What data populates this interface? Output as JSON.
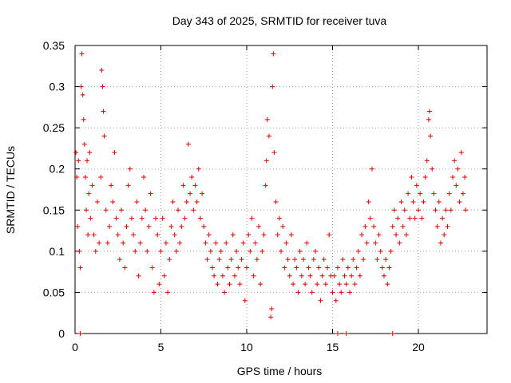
{
  "chart_data": {
    "type": "scatter",
    "title": "Day 343 of 2025, SRMTID for receiver tuva",
    "xlabel": "GPS time / hours",
    "ylabel": "SRMTID / TECUs",
    "xlim": [
      0,
      24
    ],
    "ylim": [
      0,
      0.35
    ],
    "xticks": [
      0,
      5,
      10,
      15,
      20
    ],
    "xtick_labels": [
      "0",
      "5",
      "10",
      "15",
      "20"
    ],
    "yticks": [
      0,
      0.05,
      0.1,
      0.15,
      0.2,
      0.25,
      0.3,
      0.35
    ],
    "ytick_labels": [
      "0",
      "0.05",
      "0.1",
      "0.15",
      "0.2",
      "0.25",
      "0.3",
      "0.35"
    ],
    "grid": true,
    "marker": "plus",
    "color": "#e00000",
    "series": [
      {
        "name": "SRMTID",
        "points": [
          [
            0.05,
            0.22
          ],
          [
            0.1,
            0.19
          ],
          [
            0.15,
            0.13
          ],
          [
            0.2,
            0.21
          ],
          [
            0.25,
            0.1
          ],
          [
            0.3,
            0.08
          ],
          [
            0.35,
            0.3
          ],
          [
            0.4,
            0.34
          ],
          [
            0.45,
            0.29
          ],
          [
            0.5,
            0.26
          ],
          [
            0.55,
            0.23
          ],
          [
            0.6,
            0.19
          ],
          [
            0.65,
            0.15
          ],
          [
            0.7,
            0.21
          ],
          [
            0.75,
            0.12
          ],
          [
            0.8,
            0.17
          ],
          [
            0.85,
            0.22
          ],
          [
            0.9,
            0.14
          ],
          [
            1.0,
            0.18
          ],
          [
            1.1,
            0.12
          ],
          [
            1.2,
            0.1
          ],
          [
            1.3,
            0.16
          ],
          [
            1.4,
            0.11
          ],
          [
            1.5,
            0.19
          ],
          [
            1.55,
            0.32
          ],
          [
            1.6,
            0.3
          ],
          [
            1.65,
            0.27
          ],
          [
            1.7,
            0.24
          ],
          [
            1.8,
            0.15
          ],
          [
            1.9,
            0.11
          ],
          [
            2.0,
            0.13
          ],
          [
            2.1,
            0.18
          ],
          [
            2.2,
            0.16
          ],
          [
            2.3,
            0.22
          ],
          [
            2.4,
            0.14
          ],
          [
            2.5,
            0.12
          ],
          [
            2.6,
            0.09
          ],
          [
            2.7,
            0.15
          ],
          [
            2.8,
            0.11
          ],
          [
            2.9,
            0.08
          ],
          [
            3.0,
            0.13
          ],
          [
            3.1,
            0.18
          ],
          [
            3.2,
            0.2
          ],
          [
            3.3,
            0.14
          ],
          [
            3.4,
            0.12
          ],
          [
            3.5,
            0.1
          ],
          [
            3.6,
            0.16
          ],
          [
            3.7,
            0.07
          ],
          [
            3.8,
            0.11
          ],
          [
            3.9,
            0.14
          ],
          [
            4.0,
            0.19
          ],
          [
            4.1,
            0.15
          ],
          [
            4.2,
            0.1
          ],
          [
            4.3,
            0.13
          ],
          [
            4.4,
            0.17
          ],
          [
            4.5,
            0.08
          ],
          [
            4.6,
            0.05
          ],
          [
            4.7,
            0.14
          ],
          [
            4.8,
            0.12
          ],
          [
            4.9,
            0.06
          ],
          [
            5.0,
            0.1
          ],
          [
            5.1,
            0.14
          ],
          [
            5.2,
            0.07
          ],
          [
            5.3,
            0.11
          ],
          [
            5.4,
            0.05
          ],
          [
            5.5,
            0.09
          ],
          [
            5.6,
            0.13
          ],
          [
            5.7,
            0.16
          ],
          [
            5.8,
            0.12
          ],
          [
            5.9,
            0.1
          ],
          [
            6.0,
            0.15
          ],
          [
            6.1,
            0.11
          ],
          [
            6.2,
            0.13
          ],
          [
            6.3,
            0.18
          ],
          [
            6.4,
            0.14
          ],
          [
            6.5,
            0.16
          ],
          [
            6.6,
            0.23
          ],
          [
            6.7,
            0.17
          ],
          [
            6.8,
            0.19
          ],
          [
            6.9,
            0.15
          ],
          [
            7.0,
            0.18
          ],
          [
            7.1,
            0.16
          ],
          [
            7.2,
            0.2
          ],
          [
            7.3,
            0.14
          ],
          [
            7.4,
            0.17
          ],
          [
            7.5,
            0.13
          ],
          [
            7.6,
            0.11
          ],
          [
            7.7,
            0.09
          ],
          [
            7.8,
            0.12
          ],
          [
            7.9,
            0.1
          ],
          [
            8.0,
            0.08
          ],
          [
            8.1,
            0.07
          ],
          [
            8.2,
            0.11
          ],
          [
            8.3,
            0.06
          ],
          [
            8.4,
            0.09
          ],
          [
            8.5,
            0.1
          ],
          [
            8.6,
            0.07
          ],
          [
            8.7,
            0.05
          ],
          [
            8.8,
            0.11
          ],
          [
            8.9,
            0.08
          ],
          [
            9.0,
            0.06
          ],
          [
            9.1,
            0.09
          ],
          [
            9.2,
            0.12
          ],
          [
            9.3,
            0.07
          ],
          [
            9.4,
            0.1
          ],
          [
            9.5,
            0.08
          ],
          [
            9.6,
            0.06
          ],
          [
            9.7,
            0.09
          ],
          [
            9.8,
            0.11
          ],
          [
            9.9,
            0.04
          ],
          [
            10.0,
            0.08
          ],
          [
            10.1,
            0.12
          ],
          [
            10.2,
            0.1
          ],
          [
            10.3,
            0.14
          ],
          [
            10.4,
            0.07
          ],
          [
            10.5,
            0.11
          ],
          [
            10.6,
            0.09
          ],
          [
            10.7,
            0.13
          ],
          [
            10.8,
            0.06
          ],
          [
            10.9,
            0.1
          ],
          [
            11.0,
            0.12
          ],
          [
            11.1,
            0.18
          ],
          [
            11.15,
            0.21
          ],
          [
            11.2,
            0.26
          ],
          [
            11.3,
            0.24
          ],
          [
            11.4,
            0.02
          ],
          [
            11.45,
            0.03
          ],
          [
            11.5,
            0.3
          ],
          [
            11.55,
            0.34
          ],
          [
            11.6,
            0.22
          ],
          [
            11.7,
            0.16
          ],
          [
            11.8,
            0.12
          ],
          [
            11.9,
            0.14
          ],
          [
            12.0,
            0.1
          ],
          [
            12.1,
            0.13
          ],
          [
            12.2,
            0.08
          ],
          [
            12.3,
            0.11
          ],
          [
            12.4,
            0.09
          ],
          [
            12.5,
            0.07
          ],
          [
            12.6,
            0.12
          ],
          [
            12.7,
            0.06
          ],
          [
            12.8,
            0.09
          ],
          [
            12.9,
            0.08
          ],
          [
            13.0,
            0.05
          ],
          [
            13.1,
            0.1
          ],
          [
            13.2,
            0.07
          ],
          [
            13.3,
            0.09
          ],
          [
            13.4,
            0.06
          ],
          [
            13.5,
            0.11
          ],
          [
            13.6,
            0.08
          ],
          [
            13.7,
            0.07
          ],
          [
            13.8,
            0.05
          ],
          [
            13.9,
            0.09
          ],
          [
            14.0,
            0.1
          ],
          [
            14.1,
            0.06
          ],
          [
            14.2,
            0.08
          ],
          [
            14.3,
            0.04
          ],
          [
            14.4,
            0.07
          ],
          [
            14.5,
            0.09
          ],
          [
            14.6,
            0.06
          ],
          [
            14.7,
            0.08
          ],
          [
            14.8,
            0.12
          ],
          [
            14.9,
            0.07
          ],
          [
            15.0,
            0.05
          ],
          [
            15.1,
            0.07
          ],
          [
            15.2,
            0.04
          ],
          [
            15.3,
            0.08
          ],
          [
            15.4,
            0.06
          ],
          [
            15.5,
            0.05
          ],
          [
            15.6,
            0.09
          ],
          [
            15.7,
            0.07
          ],
          [
            15.8,
            0.06
          ],
          [
            15.9,
            0.08
          ],
          [
            16.0,
            0.05
          ],
          [
            16.1,
            0.07
          ],
          [
            16.2,
            0.09
          ],
          [
            16.3,
            0.06
          ],
          [
            16.4,
            0.08
          ],
          [
            16.5,
            0.1
          ],
          [
            16.6,
            0.07
          ],
          [
            16.7,
            0.12
          ],
          [
            16.8,
            0.09
          ],
          [
            16.9,
            0.13
          ],
          [
            17.0,
            0.11
          ],
          [
            17.1,
            0.16
          ],
          [
            17.2,
            0.14
          ],
          [
            17.3,
            0.2
          ],
          [
            17.4,
            0.13
          ],
          [
            17.5,
            0.11
          ],
          [
            17.6,
            0.09
          ],
          [
            17.7,
            0.12
          ],
          [
            17.8,
            0.1
          ],
          [
            17.9,
            0.08
          ],
          [
            18.0,
            0.07
          ],
          [
            18.1,
            0.09
          ],
          [
            18.2,
            0.06
          ],
          [
            18.3,
            0.08
          ],
          [
            18.4,
            0.1
          ],
          [
            18.5,
            0.13
          ],
          [
            18.6,
            0.15
          ],
          [
            18.7,
            0.12
          ],
          [
            18.8,
            0.14
          ],
          [
            18.9,
            0.11
          ],
          [
            19.0,
            0.16
          ],
          [
            19.1,
            0.13
          ],
          [
            19.2,
            0.15
          ],
          [
            19.3,
            0.12
          ],
          [
            19.4,
            0.17
          ],
          [
            19.5,
            0.14
          ],
          [
            19.6,
            0.19
          ],
          [
            19.7,
            0.16
          ],
          [
            19.8,
            0.14
          ],
          [
            19.9,
            0.18
          ],
          [
            20.0,
            0.15
          ],
          [
            20.1,
            0.17
          ],
          [
            20.2,
            0.14
          ],
          [
            20.3,
            0.16
          ],
          [
            20.4,
            0.19
          ],
          [
            20.5,
            0.21
          ],
          [
            20.6,
            0.26
          ],
          [
            20.65,
            0.27
          ],
          [
            20.7,
            0.24
          ],
          [
            20.8,
            0.2
          ],
          [
            20.9,
            0.17
          ],
          [
            21.0,
            0.15
          ],
          [
            21.1,
            0.13
          ],
          [
            21.2,
            0.16
          ],
          [
            21.3,
            0.11
          ],
          [
            21.4,
            0.14
          ],
          [
            21.5,
            0.12
          ],
          [
            21.6,
            0.15
          ],
          [
            21.7,
            0.13
          ],
          [
            21.8,
            0.17
          ],
          [
            21.9,
            0.15
          ],
          [
            22.0,
            0.19
          ],
          [
            22.1,
            0.21
          ],
          [
            22.2,
            0.18
          ],
          [
            22.3,
            0.2
          ],
          [
            22.4,
            0.16
          ],
          [
            22.5,
            0.22
          ],
          [
            22.6,
            0.17
          ],
          [
            22.7,
            0.19
          ],
          [
            22.75,
            0.15
          ],
          [
            0.3,
            0.0
          ],
          [
            18.5,
            0.0
          ],
          [
            15.3,
            0.0
          ],
          [
            15.8,
            0.0
          ]
        ]
      }
    ]
  }
}
